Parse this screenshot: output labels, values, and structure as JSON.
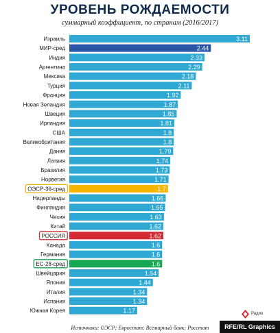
{
  "title": "УРОВЕНЬ РОЖДАЕМОСТИ",
  "subtitle": "суммарный коэффициент, по странам (2016/2017)",
  "source": "Источники: ОЭСР; Евростат; Всемирный банк; Росстат",
  "logo": {
    "text": "Радио"
  },
  "badge": "RFE/RL Graphics",
  "colors": {
    "default_bar": "#2fa9d4",
    "world_avg": "#2b56a8",
    "oecd_avg": "#f7b500",
    "russia": "#d42a33",
    "eu_avg": "#17a653",
    "label_text": "#1a1a1a"
  },
  "chart_data": {
    "type": "bar",
    "orientation": "horizontal",
    "xlim": [
      0,
      3.11
    ],
    "categories": [
      "Израиль",
      "МИР-сред",
      "Индия",
      "Аргентина",
      "Мексика",
      "Турция",
      "Франция",
      "Новая Зеландия",
      "Швеция",
      "Ирландия",
      "США",
      "Великобритания",
      "Дания",
      "Латвия",
      "Бразилия",
      "Норвегия",
      "ОЭСР-36-сред",
      "Нидерланды",
      "Финляндия",
      "Чехия",
      "Китай",
      "РОССИЯ",
      "Канада",
      "Германия",
      "ЕС-28-сред",
      "Швейцария",
      "Япония",
      "Италия",
      "Испания",
      "Южная Корея"
    ],
    "values": [
      3.11,
      2.44,
      2.33,
      2.29,
      2.18,
      2.11,
      1.92,
      1.87,
      1.85,
      1.81,
      1.8,
      1.8,
      1.79,
      1.74,
      1.73,
      1.71,
      1.7,
      1.66,
      1.65,
      1.63,
      1.62,
      1.62,
      1.6,
      1.6,
      1.6,
      1.54,
      1.44,
      1.34,
      1.34,
      1.17
    ],
    "highlights": {
      "МИР-сред": "world_avg",
      "ОЭСР-36-сред": "oecd_avg",
      "РОССИЯ": "russia",
      "ЕС-28-сред": "eu_avg"
    },
    "boxed_labels": [
      "ОЭСР-36-сред",
      "РОССИЯ",
      "ЕС-28-сред"
    ],
    "grid": false,
    "legend": "none"
  }
}
